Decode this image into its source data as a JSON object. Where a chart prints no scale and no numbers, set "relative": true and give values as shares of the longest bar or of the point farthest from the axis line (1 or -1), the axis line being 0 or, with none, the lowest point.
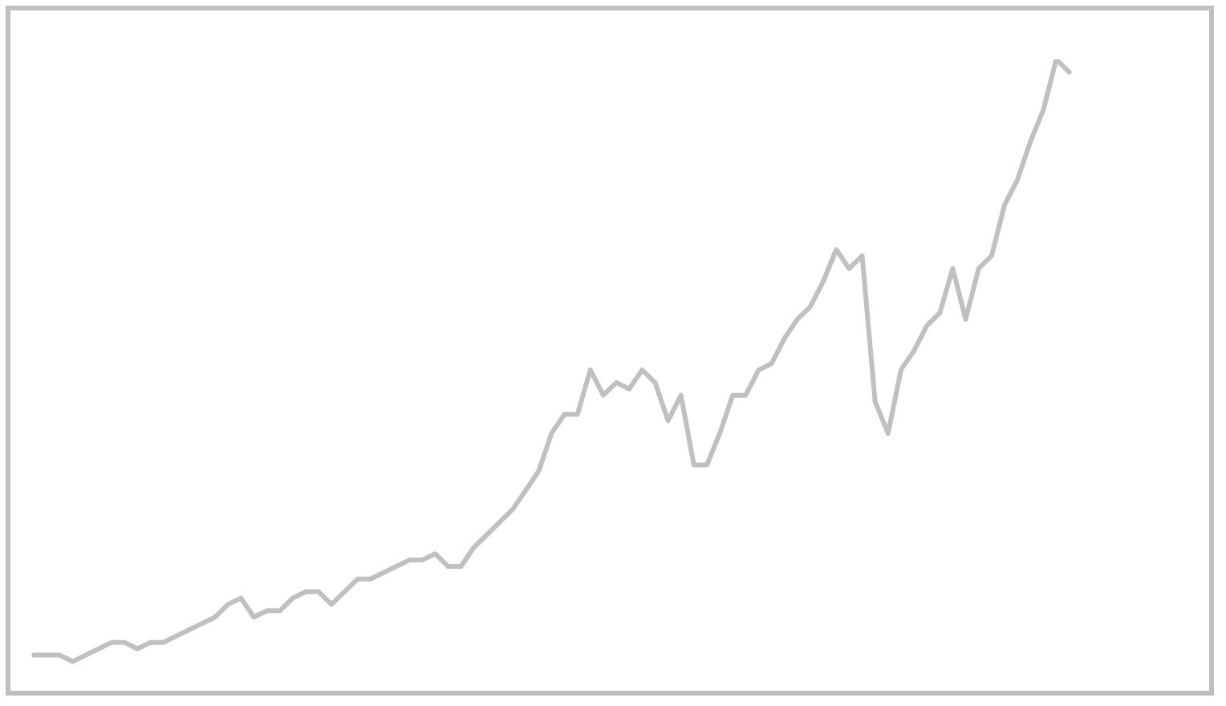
{
  "chart_data": {
    "type": "line",
    "relative": true,
    "legend": false,
    "marker": "none",
    "line_style": "solid",
    "categories": [
      null,
      null,
      null,
      null,
      null,
      null,
      null,
      null,
      null,
      null,
      null,
      null,
      null,
      null,
      null,
      null,
      null,
      null,
      null,
      null,
      null,
      null,
      null,
      null,
      null,
      null,
      null,
      null,
      null,
      null,
      null,
      null,
      null,
      null,
      null,
      null,
      null,
      null,
      null,
      null,
      null,
      null,
      null,
      null,
      null,
      null,
      null,
      null,
      null,
      null,
      null,
      null,
      null,
      null,
      null,
      null,
      null,
      null,
      null,
      null,
      null,
      null,
      null,
      null,
      null,
      null,
      null,
      null,
      null,
      null,
      null,
      null,
      null,
      null,
      null,
      null,
      null,
      null,
      null,
      null,
      null,
      null,
      null,
      null,
      null,
      null,
      null,
      null,
      null,
      null,
      null,
      null,
      null,
      null
    ],
    "series": [
      {
        "color": "#c0c0c0",
        "values": [
          null,
          null,
          0.06,
          0.06,
          0.06,
          0.05,
          0.06,
          0.07,
          0.08,
          0.08,
          0.07,
          0.08,
          0.08,
          0.09,
          0.1,
          0.11,
          0.12,
          0.14,
          0.15,
          0.12,
          0.13,
          0.13,
          0.15,
          0.16,
          0.16,
          0.14,
          0.16,
          0.18,
          0.18,
          0.19,
          0.2,
          0.21,
          0.21,
          0.22,
          0.2,
          0.2,
          0.23,
          0.25,
          0.27,
          0.29,
          0.32,
          0.35,
          0.41,
          0.44,
          0.44,
          0.51,
          0.47,
          0.49,
          0.48,
          0.51,
          0.49,
          0.43,
          0.47,
          0.36,
          0.36,
          0.41,
          0.47,
          0.47,
          0.51,
          0.52,
          0.56,
          0.59,
          0.61,
          0.65,
          0.7,
          0.67,
          0.69,
          0.46,
          0.41,
          0.51,
          0.54,
          0.58,
          0.6,
          0.67,
          0.59,
          0.67,
          0.69,
          0.77,
          0.81,
          0.87,
          0.92,
          1,
          0.98,
          null,
          null,
          null,
          null,
          null,
          null,
          null,
          null,
          null,
          null,
          null
        ]
      }
    ]
  }
}
